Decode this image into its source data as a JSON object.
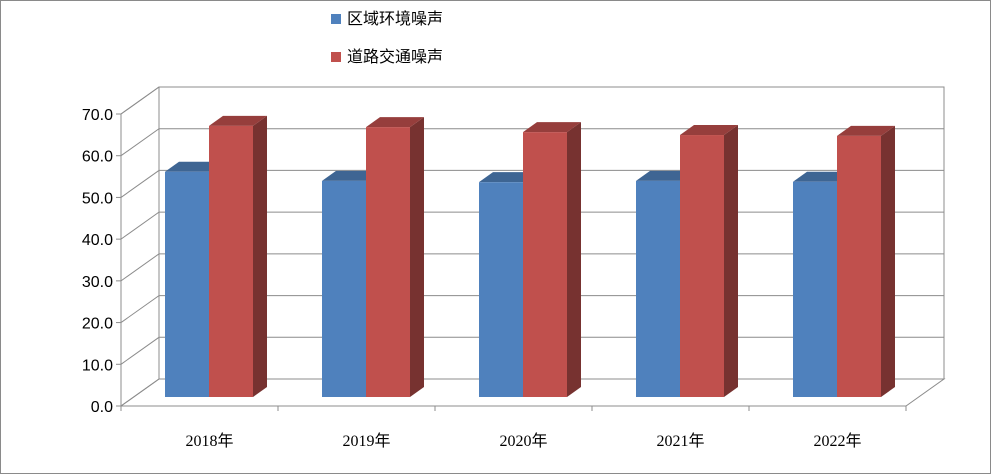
{
  "chart_data": {
    "type": "bar",
    "categories": [
      "2018年",
      "2019年",
      "2020年",
      "2021年",
      "2022年"
    ],
    "series": [
      {
        "name": "区域环境噪声",
        "values": [
          54.0,
          51.8,
          51.5,
          51.8,
          51.6
        ],
        "color": "#4F81BD"
      },
      {
        "name": "道路交通噪声",
        "values": [
          65.0,
          64.7,
          63.5,
          62.8,
          62.6
        ],
        "color": "#C0504D"
      }
    ],
    "ylim": [
      0,
      70
    ],
    "yticks": [
      "0.0",
      "10.0",
      "20.0",
      "30.0",
      "40.0",
      "50.0",
      "60.0",
      "70.0"
    ],
    "grid": true,
    "legend": "top-center",
    "three_d": true
  }
}
